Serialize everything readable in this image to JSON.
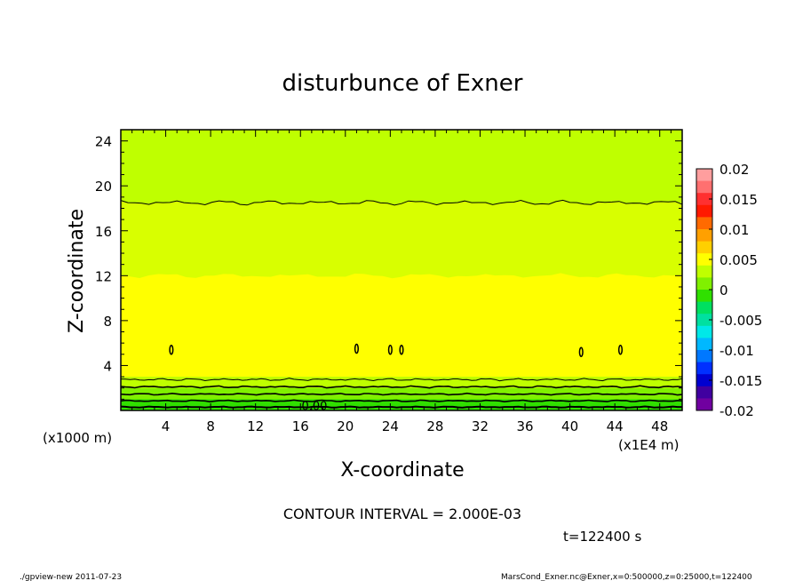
{
  "chart_data": {
    "type": "heatmap",
    "title": "disturbunce of Exner",
    "xlabel": "X-coordinate",
    "ylabel": "Z-coordinate",
    "x_unit": "(x1E4 m)",
    "y_unit": "(x1000 m)",
    "xlim": [
      0,
      50
    ],
    "ylim": [
      0,
      25
    ],
    "x_ticks": [
      4,
      8,
      12,
      16,
      20,
      24,
      28,
      32,
      36,
      40,
      44,
      48
    ],
    "y_ticks": [
      4,
      8,
      12,
      16,
      20,
      24
    ],
    "x_tick_labels": [
      "4",
      "8",
      "12",
      "16",
      "20",
      "24",
      "28",
      "32",
      "36",
      "40",
      "44",
      "48"
    ],
    "y_tick_labels": [
      "4",
      "8",
      "12",
      "16",
      "20",
      "24"
    ],
    "contour_interval_text": "CONTOUR INTERVAL = 2.000E-03",
    "time_text": "t=122400 s",
    "contour_label": "0.00",
    "colorbar": {
      "ticks": [
        "0.02",
        "0.015",
        "0.01",
        "0.005",
        "0",
        "-0.005",
        "-0.01",
        "-0.015",
        "-0.02"
      ],
      "colors": [
        "#ff9e9e",
        "#ff7070",
        "#ff3030",
        "#ff1a00",
        "#ff6a00",
        "#ffa000",
        "#ffd000",
        "#ffff00",
        "#c0ff00",
        "#80f000",
        "#30e000",
        "#00e060",
        "#00e0a0",
        "#00e8e8",
        "#00b8ff",
        "#0078ff",
        "#0030ff",
        "#0000d0",
        "#4000a0",
        "#7000a0"
      ]
    },
    "bands": [
      {
        "name": "green-top",
        "z_range": [
          18.5,
          25
        ],
        "level": 0.004,
        "color": "#bfff00"
      },
      {
        "name": "green-mid",
        "z_range": [
          12,
          18.5
        ],
        "level": 0.005,
        "color": "#d8ff00"
      },
      {
        "name": "yellow",
        "z_range": [
          3,
          12
        ],
        "level": 0.006,
        "color": "#ffff00"
      },
      {
        "name": "light-green",
        "z_range": [
          2,
          3
        ],
        "level": 0.003,
        "color": "#bfff00"
      },
      {
        "name": "green",
        "z_range": [
          1,
          2
        ],
        "level": 0.001,
        "color": "#80f000"
      },
      {
        "name": "green-bottom",
        "z_range": [
          0,
          1
        ],
        "level": 0.0,
        "color": "#30e000"
      }
    ]
  },
  "footer": {
    "left": "./gpview-new   2011-07-23",
    "right": "MarsCond_Exner.nc@Exner,x=0:500000,z=0:25000,t=122400"
  }
}
